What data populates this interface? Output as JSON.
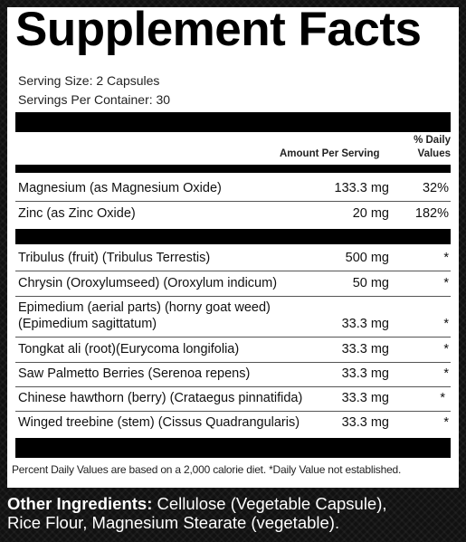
{
  "title": "Supplement Facts",
  "serving_size": "Serving Size: 2 Capsules",
  "servings_per_container": "Servings Per Container: 30",
  "header": {
    "amount": "Amount Per Serving",
    "dv_line1": "% Daily",
    "dv_line2": "Values"
  },
  "group1": [
    {
      "name": "Magnesium (as Magnesium Oxide)",
      "amount": "133.3 mg",
      "dv": "32%"
    },
    {
      "name": "Zinc (as Zinc Oxide)",
      "amount": "20 mg",
      "dv": "182%"
    }
  ],
  "group2": [
    {
      "name": "Tribulus (fruit) (Tribulus Terrestis)",
      "amount": "500 mg",
      "dv": "*"
    },
    {
      "name": "Chrysin (Oroxylumseed) (Oroxylum indicum)",
      "amount": "50 mg",
      "dv": "*"
    },
    {
      "name": "Epimedium (aerial parts) (horny goat weed)",
      "name2": "(Epimedium sagittatum)",
      "amount": "33.3 mg",
      "dv": "*"
    },
    {
      "name": "Tongkat ali (root)(Eurycoma longifolia)",
      "amount": "33.3 mg",
      "dv": "*"
    },
    {
      "name": "Saw Palmetto Berries (Serenoa repens)",
      "amount": "33.3 mg",
      "dv": "*"
    },
    {
      "name": "Chinese hawthorn (berry) (Crataegus pinnatifida)",
      "amount": "33.3 mg",
      "dv": "*"
    },
    {
      "name": "Winged treebine (stem) (Cissus Quadrangularis)",
      "amount": "33.3 mg",
      "dv": "*"
    }
  ],
  "footnote": "Percent Daily Values are based on a 2,000 calorie diet. *Daily Value not established.",
  "other_ingredients": {
    "label": "Other Ingredients:",
    "line1": " Cellulose (Vegetable Capsule),",
    "line2": "Rice Flour, Magnesium Stearate (vegetable)."
  }
}
